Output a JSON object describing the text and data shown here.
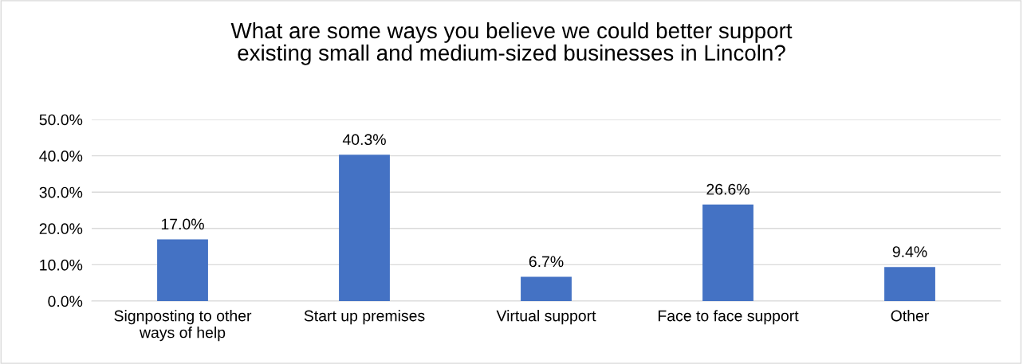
{
  "chart_data": {
    "type": "bar",
    "title": "What are some ways you believe we could better support\nexisting small and medium-sized businesses in Lincoln?",
    "categories": [
      "Signposting to other\nways of help",
      "Start up premises",
      "Virtual support",
      "Face to face support",
      "Other"
    ],
    "values": [
      17.0,
      40.3,
      6.7,
      26.6,
      9.4
    ],
    "value_labels": [
      "17.0%",
      "40.3%",
      "6.7%",
      "26.6%",
      "9.4%"
    ],
    "color": "#4472c4",
    "ylim": [
      0,
      50
    ],
    "yticks": [
      {
        "value": 0,
        "label": "0.0%"
      },
      {
        "value": 10,
        "label": "10.0%"
      },
      {
        "value": 20,
        "label": "20.0%"
      },
      {
        "value": 30,
        "label": "30.0%"
      },
      {
        "value": 40,
        "label": "40.0%"
      },
      {
        "value": 50,
        "label": "50.0%"
      }
    ],
    "grid": "y",
    "legend": false
  }
}
